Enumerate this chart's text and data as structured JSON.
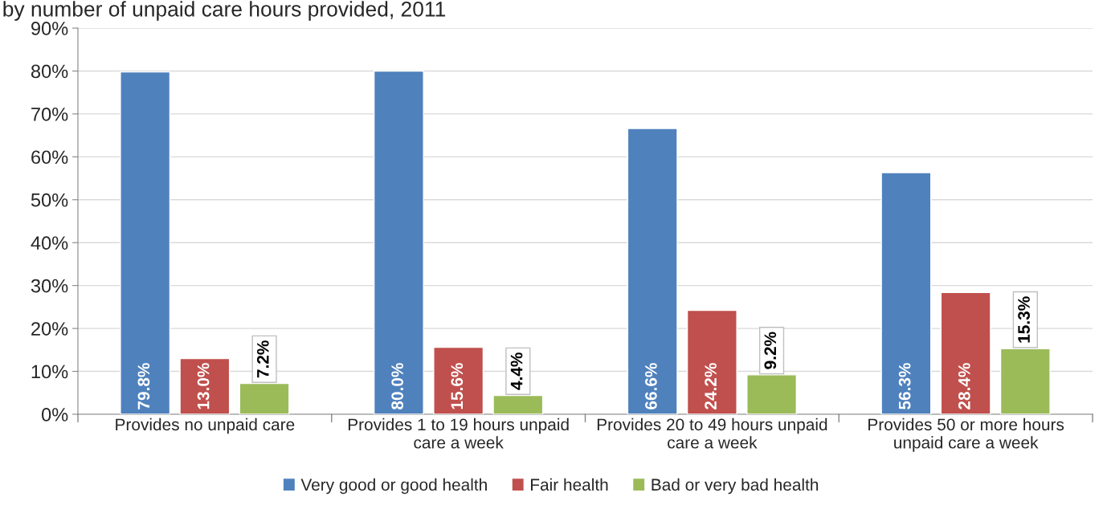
{
  "chart_data": {
    "type": "bar",
    "title": "by number of unpaid care hours provided, 2011",
    "categories": [
      "Provides no unpaid care",
      "Provides 1 to 19 hours unpaid\ncare a week",
      "Provides 20 to 49 hours unpaid\ncare a week",
      "Provides 50 or more hours\nunpaid care a week"
    ],
    "series": [
      {
        "name": "Very good or good health",
        "color": "#4f81bd",
        "values": [
          79.8,
          80.0,
          66.6,
          56.3
        ],
        "value_labels": [
          "79.8%",
          "80.0%",
          "66.6%",
          "56.3%"
        ]
      },
      {
        "name": "Fair health",
        "color": "#c0504d",
        "values": [
          13.0,
          15.6,
          24.2,
          28.4
        ],
        "value_labels": [
          "13.0%",
          "15.6%",
          "24.2%",
          "28.4%"
        ]
      },
      {
        "name": "Bad or very bad health",
        "color": "#9bbb59",
        "values": [
          7.2,
          4.4,
          9.2,
          15.3
        ],
        "value_labels": [
          "7.2%",
          "4.4%",
          "9.2%",
          "15.3%"
        ]
      }
    ],
    "ylim": [
      0,
      90
    ],
    "yticks": [
      {
        "value": 0,
        "label": "0%"
      },
      {
        "value": 10,
        "label": "10%"
      },
      {
        "value": 20,
        "label": "20%"
      },
      {
        "value": 30,
        "label": "30%"
      },
      {
        "value": 40,
        "label": "40%"
      },
      {
        "value": 50,
        "label": "50%"
      },
      {
        "value": 60,
        "label": "60%"
      },
      {
        "value": 70,
        "label": "70%"
      },
      {
        "value": 80,
        "label": "80%"
      },
      {
        "value": 90,
        "label": "90%"
      }
    ],
    "grid": "y",
    "legend": "bottom"
  }
}
